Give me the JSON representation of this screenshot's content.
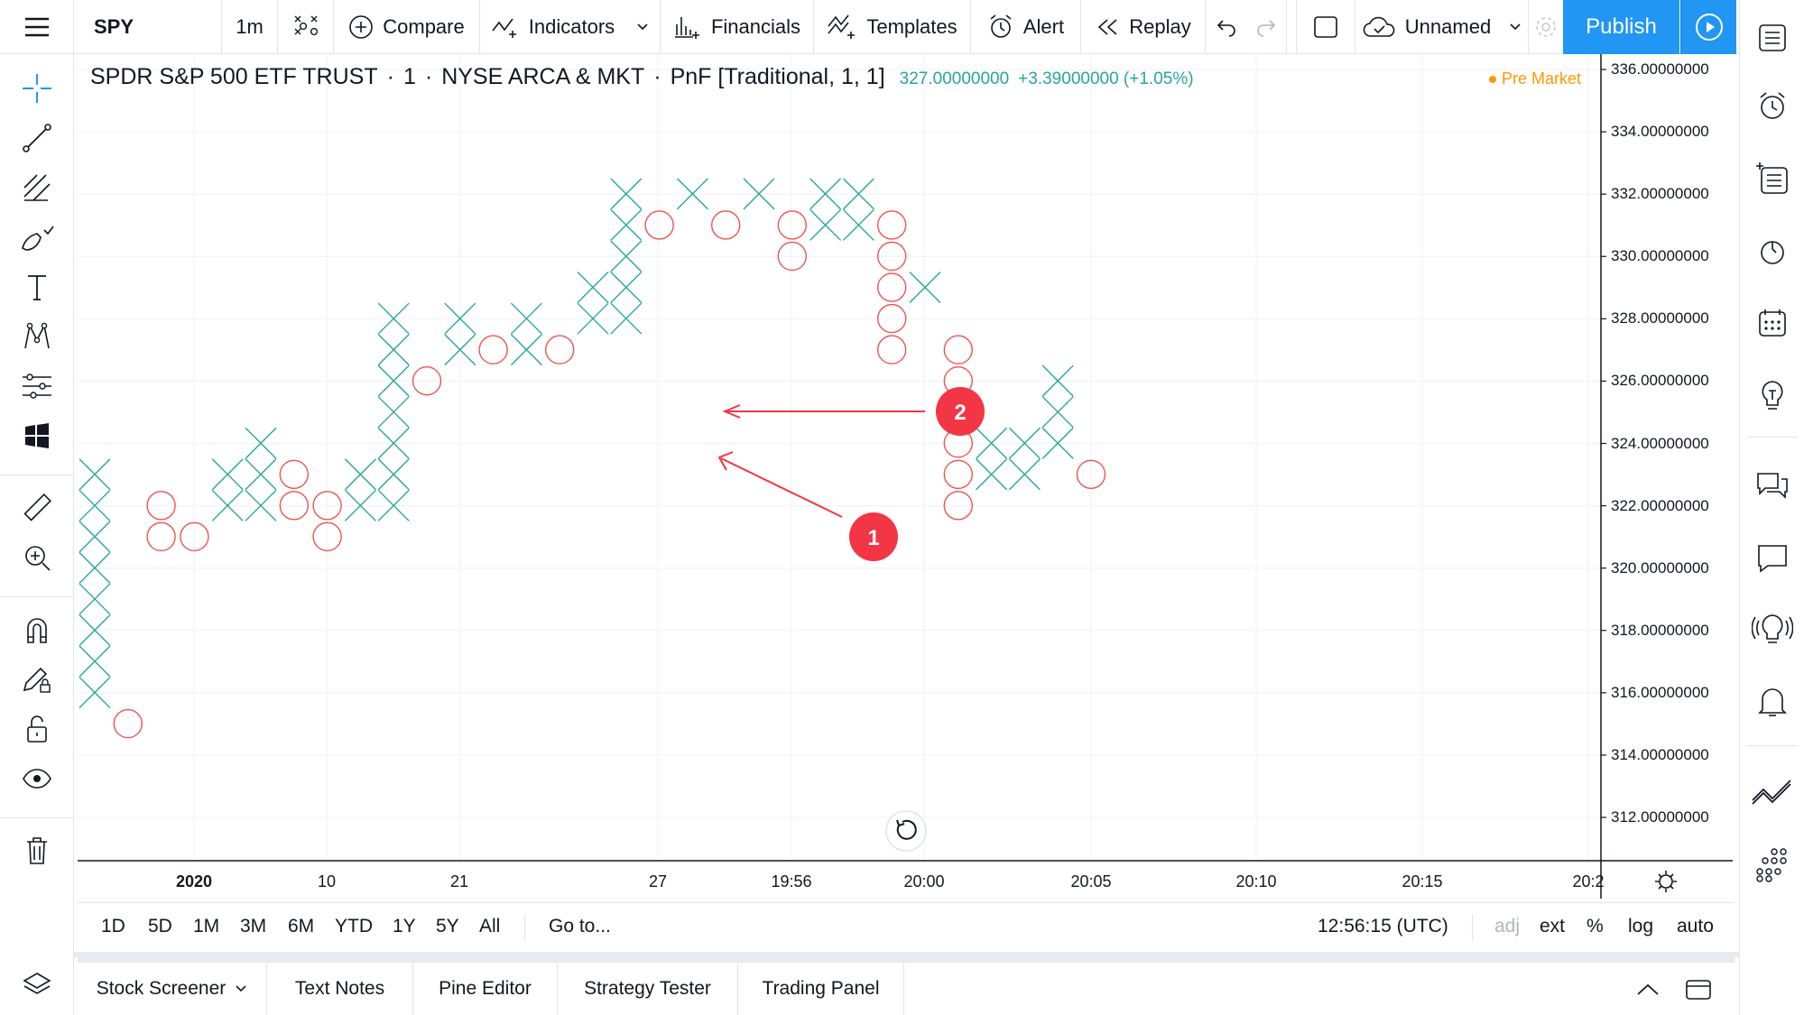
{
  "toolbar": {
    "symbol": "SPY",
    "interval": "1m",
    "compare": "Compare",
    "indicators": "Indicators",
    "financials": "Financials",
    "templates": "Templates",
    "alert": "Alert",
    "replay": "Replay",
    "layout_name": "Unnamed",
    "publish": "Publish"
  },
  "legend": {
    "title": "SPDR S&P 500 ETF TRUST",
    "interval": "1",
    "exchange": "NYSE ARCA & MKT",
    "chart_type": "PnF [Traditional, 1, 1]",
    "price": "327.00000000",
    "change": "+3.39000000 (+1.05%)",
    "session": "Pre Market"
  },
  "y_axis_labels": [
    "336.00000000",
    "334.00000000",
    "332.00000000",
    "330.00000000",
    "328.00000000",
    "326.00000000",
    "324.00000000",
    "322.00000000",
    "320.00000000",
    "318.00000000",
    "316.00000000",
    "314.00000000",
    "312.00000000"
  ],
  "x_axis_labels": [
    "2020",
    "10",
    "21",
    "27",
    "19:56",
    "20:00",
    "20:05",
    "20:10",
    "20:15",
    "20:2"
  ],
  "annotations": [
    {
      "number": "1",
      "color": "#f23645"
    },
    {
      "number": "2",
      "color": "#f23645"
    }
  ],
  "ranges": [
    "1D",
    "5D",
    "1M",
    "3M",
    "6M",
    "YTD",
    "1Y",
    "5Y",
    "All"
  ],
  "goto": "Go to...",
  "clock": "12:56:15 (UTC)",
  "scale_opts": {
    "adj": "adj",
    "ext": "ext",
    "pct": "%",
    "log": "log",
    "auto": "auto"
  },
  "bottom_tabs": [
    "Stock Screener",
    "Text Notes",
    "Pine Editor",
    "Strategy Tester",
    "Trading Panel"
  ],
  "colors": {
    "x_color": "#26a69a",
    "o_color": "#ef5350",
    "accent": "#2196f3",
    "session": "#ff9800"
  },
  "chart_data": {
    "type": "point-and-figure",
    "box_size": 1,
    "reversal": 1,
    "ylim": [
      311,
      336
    ],
    "columns": [
      {
        "type": "X",
        "low": 316,
        "high": 323
      },
      {
        "type": "O",
        "low": 315,
        "high": 315
      },
      {
        "type": "O",
        "low": 321,
        "high": 322
      },
      {
        "type": "O",
        "low": 321,
        "high": 321
      },
      {
        "type": "X",
        "low": 322,
        "high": 323
      },
      {
        "type": "X",
        "low": 322,
        "high": 324
      },
      {
        "type": "O",
        "low": 322,
        "high": 323
      },
      {
        "type": "O",
        "low": 321,
        "high": 322
      },
      {
        "type": "X",
        "low": 322,
        "high": 323
      },
      {
        "type": "X",
        "low": 322,
        "high": 328
      },
      {
        "type": "O",
        "low": 326,
        "high": 326
      },
      {
        "type": "X",
        "low": 327,
        "high": 328
      },
      {
        "type": "O",
        "low": 327,
        "high": 327
      },
      {
        "type": "X",
        "low": 327,
        "high": 328
      },
      {
        "type": "O",
        "low": 327,
        "high": 327
      },
      {
        "type": "X",
        "low": 328,
        "high": 329
      },
      {
        "type": "X",
        "low": 328,
        "high": 332
      },
      {
        "type": "O",
        "low": 331,
        "high": 331
      },
      {
        "type": "X",
        "low": 332,
        "high": 332
      },
      {
        "type": "O",
        "low": 331,
        "high": 331
      },
      {
        "type": "X",
        "low": 332,
        "high": 332
      },
      {
        "type": "O",
        "low": 330,
        "high": 331
      },
      {
        "type": "X",
        "low": 331,
        "high": 332
      },
      {
        "type": "X",
        "low": 331,
        "high": 332
      },
      {
        "type": "O",
        "low": 327,
        "high": 331
      },
      {
        "type": "X",
        "low": 329,
        "high": 329
      },
      {
        "type": "O",
        "low": 322,
        "high": 327
      },
      {
        "type": "X",
        "low": 323,
        "high": 324
      },
      {
        "type": "X",
        "low": 323,
        "high": 324
      },
      {
        "type": "X",
        "low": 324,
        "high": 326
      },
      {
        "type": "O",
        "low": 323,
        "high": 323
      }
    ]
  }
}
